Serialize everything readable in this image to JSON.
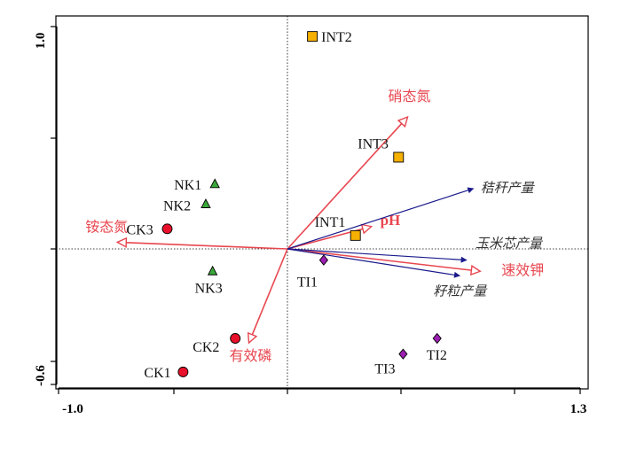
{
  "chart_data": {
    "type": "scatter",
    "subtype": "ordination-biplot",
    "title": "",
    "xlabel": "",
    "ylabel": "",
    "xlim": [
      -1.0,
      1.3
    ],
    "ylim": [
      -0.6,
      1.0
    ],
    "x_tick_labels": [
      "-1.0",
      "1.3"
    ],
    "y_tick_labels": [
      "1.0",
      "-0.6"
    ],
    "reference_lines": "dotted lines at x=0 and y=0",
    "grid": false,
    "legend": "none",
    "colors": {
      "red_arrow": "#e8464f",
      "blue_arrow": "#1a1a8c",
      "circle": "#e8102a",
      "triangle": "#3aa83a",
      "square": "#f5b000",
      "diamond": "#9b1fb0"
    },
    "env_vectors": [
      {
        "name": "硝态氮",
        "x": 0.53,
        "y": 0.59,
        "color": "red",
        "style": "open-arrow"
      },
      {
        "name": "铵态氮",
        "x": -0.75,
        "y": 0.03,
        "color": "red",
        "style": "open-arrow"
      },
      {
        "name": "有效磷",
        "x": -0.17,
        "y": -0.42,
        "color": "red",
        "style": "open-arrow"
      },
      {
        "name": "pH",
        "x": 0.37,
        "y": 0.1,
        "color": "red",
        "style": "open-arrow",
        "bold": true
      },
      {
        "name": "速效钾",
        "x": 0.85,
        "y": -0.1,
        "color": "red",
        "style": "open-arrow"
      },
      {
        "name": "秸秆产量",
        "x": 0.82,
        "y": 0.27,
        "color": "blue",
        "style": "filled-arrow"
      },
      {
        "name": "玉米芯产量",
        "x": 0.79,
        "y": -0.05,
        "color": "blue",
        "style": "filled-arrow"
      },
      {
        "name": "籽粒产量",
        "x": 0.76,
        "y": -0.12,
        "color": "blue",
        "style": "filled-arrow"
      }
    ],
    "groups": [
      {
        "shape": "circle",
        "points": [
          {
            "label": "CK1",
            "x": -0.46,
            "y": -0.55
          },
          {
            "label": "CK2",
            "x": -0.23,
            "y": -0.4
          },
          {
            "label": "CK3",
            "x": -0.53,
            "y": 0.09
          }
        ]
      },
      {
        "shape": "triangle",
        "points": [
          {
            "label": "NK1",
            "x": -0.32,
            "y": 0.29
          },
          {
            "label": "NK2",
            "x": -0.36,
            "y": 0.2
          },
          {
            "label": "NK3",
            "x": -0.33,
            "y": -0.1
          }
        ]
      },
      {
        "shape": "square",
        "points": [
          {
            "label": "INT1",
            "x": 0.3,
            "y": 0.06
          },
          {
            "label": "INT2",
            "x": 0.11,
            "y": 0.95
          },
          {
            "label": "INT3",
            "x": 0.49,
            "y": 0.41
          }
        ]
      },
      {
        "shape": "diamond",
        "points": [
          {
            "label": "TI1",
            "x": 0.16,
            "y": -0.05
          },
          {
            "label": "TI2",
            "x": 0.66,
            "y": -0.4
          },
          {
            "label": "TI3",
            "x": 0.51,
            "y": -0.47
          }
        ]
      }
    ]
  }
}
